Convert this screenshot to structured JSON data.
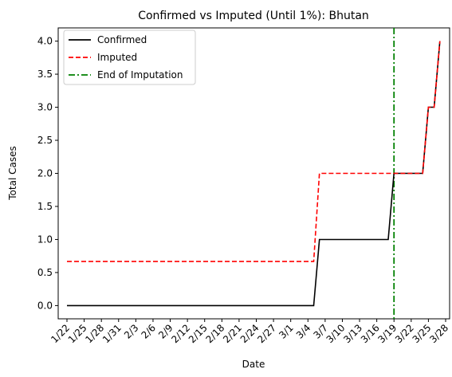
{
  "chart_data": {
    "type": "line",
    "title": "Confirmed vs Imputed (Until 1%): Bhutan",
    "xlabel": "Date",
    "ylabel": "Total Cases",
    "x_start": "1/22",
    "x_tick_labels": [
      "1/22",
      "1/25",
      "1/28",
      "1/31",
      "2/3",
      "2/6",
      "2/9",
      "2/12",
      "2/15",
      "2/18",
      "2/21",
      "2/24",
      "2/27",
      "3/1",
      "3/4",
      "3/7",
      "3/10",
      "3/13",
      "3/16",
      "3/19",
      "3/22",
      "3/25",
      "3/28"
    ],
    "ylim": [
      -0.2,
      4.2
    ],
    "yticks": [
      "0.0",
      "0.5",
      "1.0",
      "1.5",
      "2.0",
      "2.5",
      "3.0",
      "3.5",
      "4.0"
    ],
    "x_dates": [
      "1/22",
      "3/5",
      "3/6",
      "3/18",
      "3/19",
      "3/20",
      "3/24",
      "3/25",
      "3/26",
      "3/27"
    ],
    "series": [
      {
        "name": "Confirmed",
        "color": "#000000",
        "style": "solid",
        "values": [
          0,
          0,
          1,
          1,
          2,
          2,
          2,
          3,
          3,
          4
        ]
      },
      {
        "name": "Imputed",
        "color": "#ff0000",
        "style": "dashed",
        "values": [
          0.667,
          0.667,
          2,
          2,
          2,
          2,
          2,
          3,
          3,
          4
        ]
      }
    ],
    "vlines": [
      {
        "name": "End of Imputation",
        "x": "3/19",
        "color": "#008000",
        "style": "dashdot"
      }
    ],
    "legend": "top-left",
    "grid": false
  }
}
